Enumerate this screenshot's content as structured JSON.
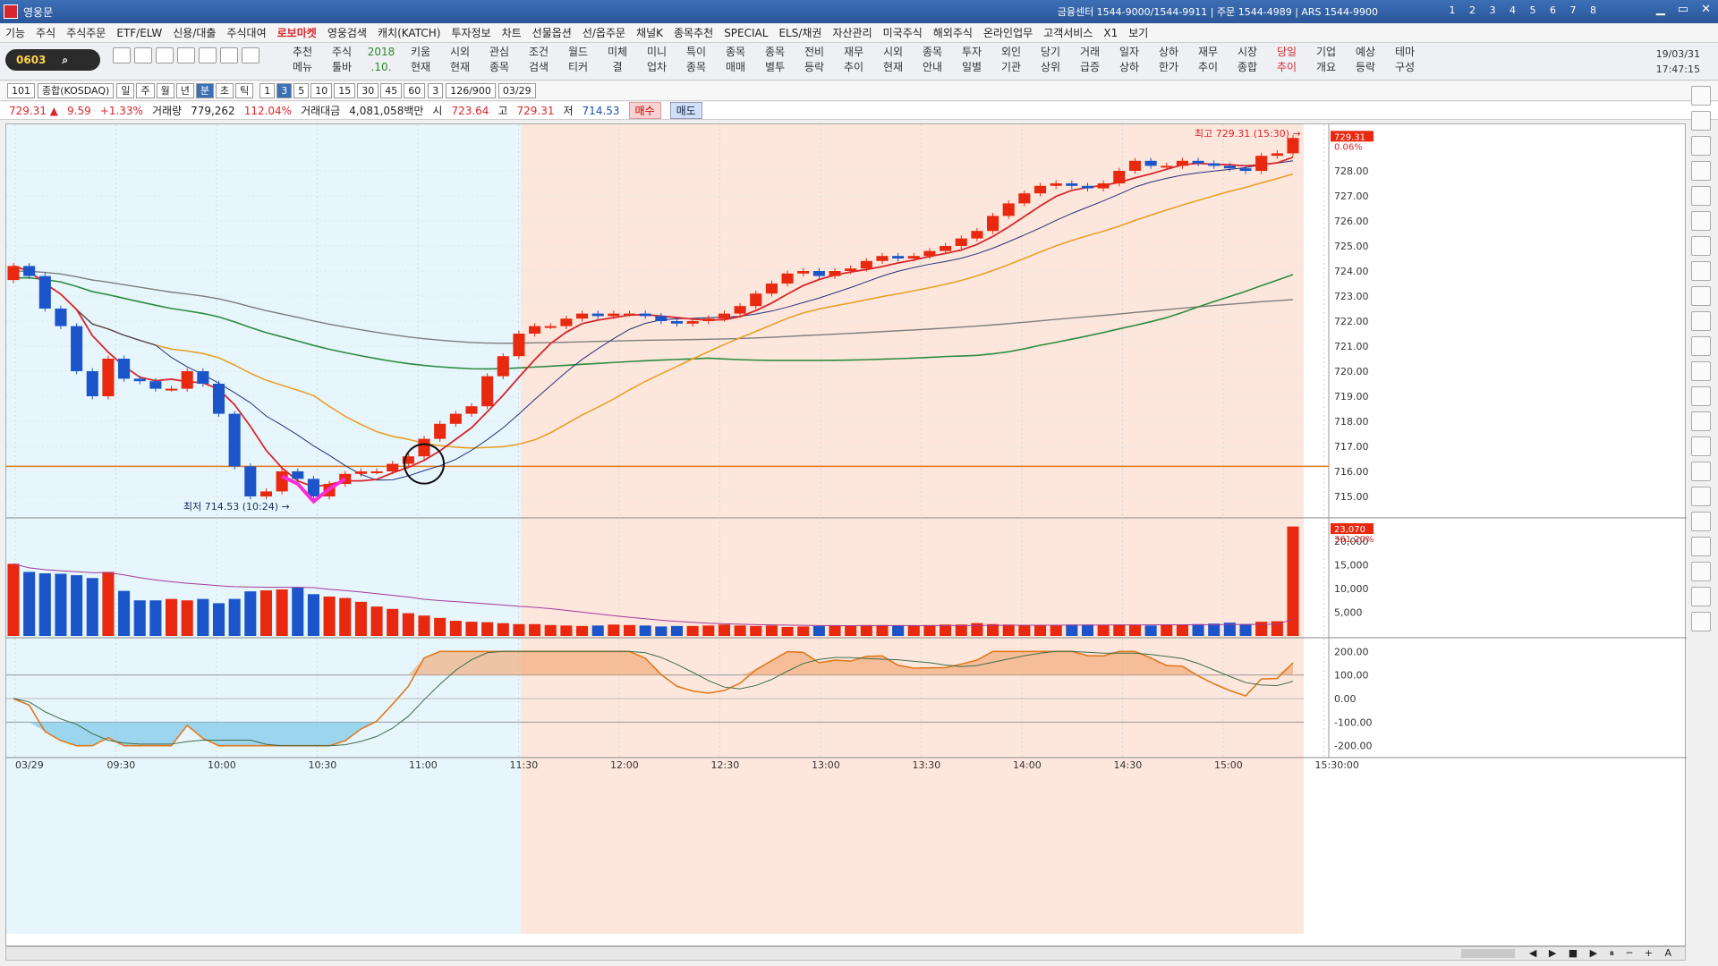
{
  "window": {
    "title": "영웅문",
    "info": "금융센터 1544-9000/1544-9911 | 주문 1544-4989 | ARS 1544-9900",
    "screen_nums": "1 2 3 4 5 6 7 8"
  },
  "menu": [
    "기능",
    "주식",
    "주식주문",
    "ETF/ELW",
    "신용/대출",
    "주식대여",
    "로보마켓",
    "영웅검색",
    "캐치(KATCH)",
    "투자정보",
    "차트",
    "선물옵션",
    "선/옵주문",
    "채널K",
    "종목추천",
    "SPECIAL",
    "ELS/채권",
    "자산관리",
    "미국주식",
    "해외주식",
    "온라인업무",
    "고객서비스",
    "X1",
    "보기"
  ],
  "menu_highlight": "로보마켓",
  "toolbar": {
    "screen_code": "0603",
    "items": [
      {
        "top": "추천",
        "bottom": "메뉴"
      },
      {
        "top": "주식",
        "bottom": "툴바"
      },
      {
        "top": "2018",
        "bottom": ".10."
      },
      {
        "top": "키움",
        "bottom": "현재"
      },
      {
        "top": "시외",
        "bottom": "현재"
      },
      {
        "top": "관심",
        "bottom": "종목"
      },
      {
        "top": "조건",
        "bottom": "검색"
      },
      {
        "top": "월드",
        "bottom": "티커"
      },
      {
        "top": "미체",
        "bottom": "결"
      },
      {
        "top": "미니",
        "bottom": "업차"
      },
      {
        "top": "특이",
        "bottom": "종목"
      },
      {
        "top": "종목",
        "bottom": "매매"
      },
      {
        "top": "종목",
        "bottom": "별투"
      },
      {
        "top": "전비",
        "bottom": "등락"
      },
      {
        "top": "재무",
        "bottom": "추이"
      },
      {
        "top": "시외",
        "bottom": "현재"
      },
      {
        "top": "종목",
        "bottom": "안내"
      },
      {
        "top": "투자",
        "bottom": "일별"
      },
      {
        "top": "외인",
        "bottom": "기관"
      },
      {
        "top": "당기",
        "bottom": "상위"
      },
      {
        "top": "거래",
        "bottom": "급증"
      },
      {
        "top": "일자",
        "bottom": "상하"
      },
      {
        "top": "상하",
        "bottom": "한가"
      },
      {
        "top": "재무",
        "bottom": "추이"
      },
      {
        "top": "시장",
        "bottom": "종합"
      },
      {
        "top": "당일",
        "bottom": "추이"
      },
      {
        "top": "기업",
        "bottom": "개요"
      },
      {
        "top": "예상",
        "bottom": "등락"
      },
      {
        "top": "테마",
        "bottom": "구성"
      }
    ],
    "date": "19/03/31",
    "time": "17:47:15"
  },
  "controls": {
    "code": "101",
    "market": "종합(KOSDAQ)",
    "periods": [
      "일",
      "주",
      "월",
      "년",
      "분",
      "초",
      "틱"
    ],
    "selected_period": "분",
    "intervals": [
      "1",
      "3",
      "5",
      "10",
      "15",
      "30",
      "45",
      "60"
    ],
    "selected_interval": "3",
    "count": "3",
    "range": "126/900",
    "date": "03/29"
  },
  "quote": {
    "price": "729.31 ▲",
    "change": "9.59",
    "change_pct": "+1.33%",
    "volume_label": "거래량",
    "volume": "779,262",
    "volume_pct": "112.04%",
    "amount_label": "거래대금",
    "amount": "4,081,058백만",
    "open_label": "시",
    "open": "723.64",
    "high_label": "고",
    "high": "729.31",
    "low_label": "저",
    "low": "714.53",
    "buy_label": "매수",
    "sell_label": "매도"
  },
  "chart_data": [
    {
      "type": "candlestick",
      "title": "",
      "x_labels": [
        "03/29",
        "09:30",
        "10:00",
        "10:30",
        "11:00",
        "11:30",
        "12:00",
        "12:30",
        "13:00",
        "13:30",
        "14:00",
        "14:30",
        "15:00",
        "15:30:00"
      ],
      "ylim": [
        714.5,
        729.5
      ],
      "y_ticks": [
        "728.00",
        "727.00",
        "726.00",
        "725.00",
        "724.00",
        "723.00",
        "722.00",
        "721.00",
        "720.00",
        "719.00",
        "718.00",
        "717.00",
        "716.00",
        "715.00"
      ],
      "last_price_tag": "729.31",
      "last_pct_tag": "0.06%",
      "high_annotation": "최고 729.31 (15:30)",
      "low_annotation": "최저 714.53 (10:24)",
      "horizontal_line": 716.2,
      "close": [
        724.2,
        723.8,
        722.5,
        721.8,
        720.0,
        719.0,
        720.5,
        719.7,
        719.6,
        719.3,
        719.3,
        720.0,
        719.5,
        718.3,
        716.2,
        715.0,
        715.2,
        716.0,
        715.7,
        715.0,
        715.5,
        715.9,
        716.0,
        716.0,
        716.3,
        716.6,
        717.3,
        717.9,
        718.3,
        718.6,
        719.8,
        720.6,
        721.5,
        721.8,
        721.8,
        722.1,
        722.3,
        722.2,
        722.3,
        722.3,
        722.2,
        722.0,
        721.9,
        722.0,
        722.1,
        722.3,
        722.6,
        723.1,
        723.5,
        723.9,
        724.0,
        723.8,
        724.0,
        724.1,
        724.4,
        724.6,
        724.5,
        724.6,
        724.8,
        725.0,
        725.3,
        725.6,
        726.2,
        726.7,
        727.1,
        727.4,
        727.5,
        727.4,
        727.3,
        727.5,
        728.0,
        728.4,
        728.2,
        728.2,
        728.4,
        728.3,
        728.2,
        728.1,
        728.0,
        728.6,
        728.7,
        729.31
      ],
      "ma_fast": "red",
      "ma_mid": "navy",
      "ma_slow": "orange",
      "ma_long": "green",
      "ma_longest": "gray"
    },
    {
      "type": "bar",
      "title": "",
      "y_ticks": [
        "20,000",
        "15,000",
        "10,000",
        "5,000"
      ],
      "last_tag": "23,070",
      "last_pct_tag": "361.20%",
      "ylim": [
        0,
        23000
      ]
    },
    {
      "type": "line",
      "title": "",
      "y_ticks": [
        "200.00",
        "100.00",
        "0.00",
        "-100.00",
        "-200.00"
      ],
      "ylim": [
        -220,
        220
      ]
    }
  ],
  "colors": {
    "up": "#e8280f",
    "down": "#1c55c9",
    "morning_bg": "#e6f6fc",
    "afternoon_bg": "#fde7dc"
  },
  "scroll_controls": "◀ ▶ ■ ▶ ⏸ ─ + A"
}
